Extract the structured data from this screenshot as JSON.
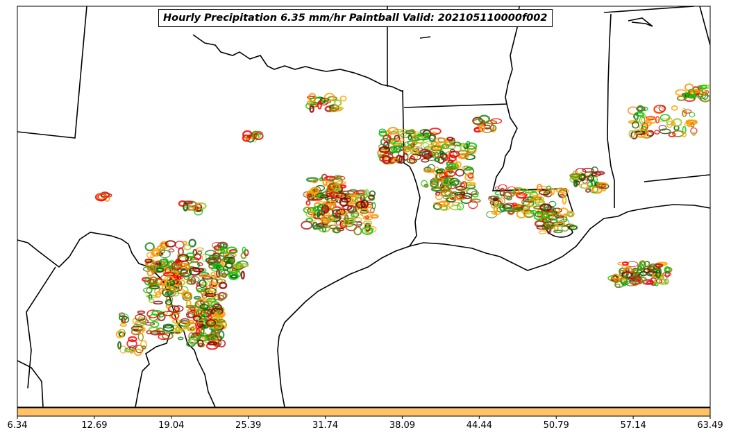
{
  "title": "Hourly Precipitation 6.35 mm/hr Paintball Valid: 202105110000f002",
  "colorbar": {
    "fill_color": "#FFC266",
    "tick_labels": [
      "6.34",
      "12.69",
      "19.04",
      "25.39",
      "31.74",
      "38.09",
      "44.44",
      "50.79",
      "57.14",
      "63.49"
    ]
  },
  "colors": {
    "member_colors": [
      "#FF8C00",
      "#FF0000",
      "#8B0000",
      "#00CC00",
      "#006400",
      "#808000",
      "#FFA500",
      "#B22222",
      "#228B22",
      "#9ACD32"
    ],
    "coastline": "#000000",
    "background": "#FFFFFF"
  }
}
